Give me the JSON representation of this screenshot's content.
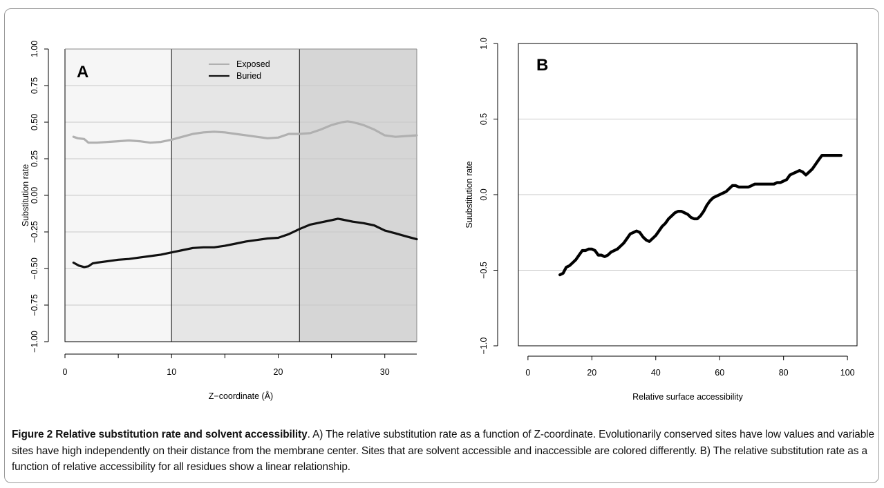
{
  "caption": {
    "figure_label": "Figure 2",
    "title": "Relative substitution rate and solvent accessibility",
    "body": ". A) The relative substitution rate as a function of Z-coordinate. Evolutionarily conserved sites have low values and variable sites have high independently on their distance from the membrane center. Sites that are solvent accessible and inaccessible are colored differently. B) The relative substitution rate as a function of relative accessibility for all residues show a linear relationship."
  },
  "chart_data": [
    {
      "panel": "A",
      "type": "line",
      "xlabel": "Z−coordinate (Å)",
      "ylabel": "Substitution rate",
      "xlim": [
        0,
        33
      ],
      "ylim": [
        -1.0,
        1.0
      ],
      "x_ticks": [
        0,
        10,
        20,
        30
      ],
      "y_ticks": [
        -1.0,
        -0.75,
        -0.5,
        -0.25,
        0.0,
        0.25,
        0.5,
        0.75,
        1.0
      ],
      "x_tick_labels": [
        "0",
        "10",
        "20",
        "30"
      ],
      "y_tick_labels": [
        "−1.00",
        "−0.75",
        "−0.50",
        "−0.25",
        "0.00",
        "0.25",
        "0.50",
        "0.75",
        "1.00"
      ],
      "grid": true,
      "legend_position": "top-center",
      "background_regions": [
        {
          "x0": 0,
          "x1": 10,
          "color": "#f6f6f6"
        },
        {
          "x0": 10,
          "x1": 22,
          "color": "#e6e6e6"
        },
        {
          "x0": 22,
          "x1": 33,
          "color": "#d6d6d6"
        }
      ],
      "vlines": [
        10,
        22
      ],
      "series": [
        {
          "name": "Exposed",
          "color": "#b0b0b0",
          "x": [
            0.8,
            1.2,
            1.8,
            2.2,
            2.6,
            3.0,
            4.0,
            5.0,
            6.0,
            7.0,
            8.0,
            9.0,
            10.0,
            11.0,
            12.0,
            13.0,
            14.0,
            15.0,
            16.0,
            17.0,
            18.0,
            19.0,
            20.0,
            21.0,
            22.0,
            23.0,
            24.0,
            25.0,
            26.0,
            26.5,
            27.0,
            28.0,
            29.0,
            30.0,
            31.0,
            32.0,
            33.0
          ],
          "y": [
            0.4,
            0.39,
            0.385,
            0.36,
            0.36,
            0.36,
            0.365,
            0.37,
            0.375,
            0.37,
            0.36,
            0.365,
            0.38,
            0.4,
            0.42,
            0.43,
            0.435,
            0.43,
            0.42,
            0.41,
            0.4,
            0.39,
            0.395,
            0.42,
            0.42,
            0.425,
            0.45,
            0.48,
            0.5,
            0.505,
            0.5,
            0.48,
            0.45,
            0.41,
            0.4,
            0.405,
            0.41
          ]
        },
        {
          "name": "Buried",
          "color": "#111111",
          "x": [
            0.8,
            1.3,
            1.8,
            2.2,
            2.6,
            3.0,
            4.0,
            5.0,
            6.0,
            7.0,
            8.0,
            9.0,
            10.0,
            11.0,
            12.0,
            13.0,
            14.0,
            15.0,
            16.0,
            17.0,
            18.0,
            19.0,
            20.0,
            21.0,
            22.0,
            23.0,
            24.0,
            25.0,
            25.6,
            26.0,
            27.0,
            28.0,
            29.0,
            30.0,
            31.0,
            32.0,
            33.0
          ],
          "y": [
            -0.46,
            -0.48,
            -0.49,
            -0.485,
            -0.465,
            -0.46,
            -0.45,
            -0.44,
            -0.435,
            -0.425,
            -0.415,
            -0.405,
            -0.39,
            -0.375,
            -0.36,
            -0.355,
            -0.355,
            -0.345,
            -0.33,
            -0.315,
            -0.305,
            -0.295,
            -0.29,
            -0.265,
            -0.23,
            -0.2,
            -0.185,
            -0.17,
            -0.16,
            -0.165,
            -0.18,
            -0.19,
            -0.205,
            -0.24,
            -0.26,
            -0.28,
            -0.3
          ]
        }
      ]
    },
    {
      "panel": "B",
      "type": "line",
      "xlabel": "Relative surface accessibility",
      "ylabel": "Suubstitution rate",
      "xlim": [
        -3,
        103
      ],
      "ylim": [
        -1.0,
        1.0
      ],
      "x_ticks": [
        0,
        20,
        40,
        60,
        80,
        100
      ],
      "y_ticks": [
        -1.0,
        -0.5,
        0.0,
        0.5,
        1.0
      ],
      "x_tick_labels": [
        "0",
        "20",
        "40",
        "60",
        "80",
        "100"
      ],
      "y_tick_labels": [
        "−1.0",
        "−0.5",
        "0.0",
        "0.5",
        "1.0"
      ],
      "grid": true,
      "series": [
        {
          "color": "#000000",
          "x": [
            10,
            11,
            12,
            13,
            14,
            15,
            16,
            17,
            18,
            19,
            20,
            21,
            22,
            23,
            24,
            25,
            26,
            27,
            28,
            29,
            30,
            31,
            32,
            33,
            34,
            35,
            36,
            37,
            38,
            39,
            40,
            41,
            42,
            43,
            44,
            45,
            46,
            47,
            48,
            49,
            50,
            51,
            52,
            53,
            54,
            55,
            56,
            57,
            58,
            59,
            60,
            61,
            62,
            63,
            64,
            65,
            66,
            67,
            68,
            69,
            70,
            71,
            72,
            73,
            74,
            75,
            76,
            77,
            78,
            79,
            80,
            81,
            82,
            83,
            84,
            85,
            86,
            87,
            88,
            89,
            90,
            91,
            92,
            93,
            94,
            95,
            96,
            97,
            98
          ],
          "y": [
            -0.53,
            -0.52,
            -0.48,
            -0.47,
            -0.45,
            -0.43,
            -0.4,
            -0.37,
            -0.37,
            -0.36,
            -0.36,
            -0.37,
            -0.4,
            -0.4,
            -0.41,
            -0.4,
            -0.38,
            -0.37,
            -0.36,
            -0.34,
            -0.32,
            -0.29,
            -0.26,
            -0.25,
            -0.24,
            -0.25,
            -0.28,
            -0.3,
            -0.31,
            -0.29,
            -0.27,
            -0.24,
            -0.21,
            -0.19,
            -0.16,
            -0.14,
            -0.12,
            -0.11,
            -0.11,
            -0.12,
            -0.13,
            -0.15,
            -0.16,
            -0.16,
            -0.14,
            -0.11,
            -0.07,
            -0.04,
            -0.02,
            -0.01,
            0.0,
            0.01,
            0.02,
            0.04,
            0.06,
            0.06,
            0.05,
            0.05,
            0.05,
            0.05,
            0.06,
            0.07,
            0.07,
            0.07,
            0.07,
            0.07,
            0.07,
            0.07,
            0.08,
            0.08,
            0.09,
            0.1,
            0.13,
            0.14,
            0.15,
            0.16,
            0.15,
            0.13,
            0.15,
            0.17,
            0.2,
            0.23,
            0.26,
            0.26,
            0.26,
            0.26,
            0.26,
            0.26,
            0.26
          ]
        }
      ]
    }
  ]
}
